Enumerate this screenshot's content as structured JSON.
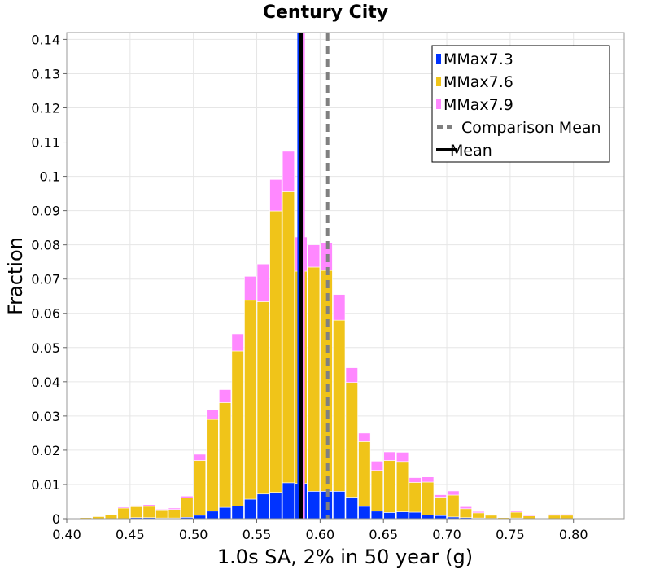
{
  "chart_data": {
    "type": "bar",
    "title": "Century City",
    "xlabel": "1.0s SA, 2% in 50 year (g)",
    "ylabel": "Fraction",
    "xlim": [
      0.4,
      0.84
    ],
    "ylim": [
      0,
      0.142
    ],
    "x_ticks": [
      "0.40",
      "0.45",
      "0.50",
      "0.55",
      "0.60",
      "0.65",
      "0.70",
      "0.75",
      "0.80"
    ],
    "y_ticks": [
      "0",
      "0.01",
      "0.02",
      "0.03",
      "0.04",
      "0.05",
      "0.06",
      "0.07",
      "0.08",
      "0.09",
      "0.1",
      "0.11",
      "0.12",
      "0.13",
      "0.14"
    ],
    "grid": true,
    "stacked": true,
    "bin_width": 0.01,
    "legend_position": "top-right",
    "bin_centers": [
      0.405,
      0.415,
      0.425,
      0.435,
      0.445,
      0.455,
      0.465,
      0.475,
      0.485,
      0.495,
      0.505,
      0.515,
      0.525,
      0.535,
      0.545,
      0.555,
      0.565,
      0.575,
      0.585,
      0.595,
      0.605,
      0.615,
      0.625,
      0.635,
      0.645,
      0.655,
      0.665,
      0.675,
      0.685,
      0.695,
      0.705,
      0.715,
      0.725,
      0.735,
      0.745,
      0.755,
      0.765,
      0.775,
      0.785,
      0.795,
      0.805,
      0.815,
      0.825,
      0.835
    ],
    "series": [
      {
        "name": "MMax7.3",
        "color": "#0033ff",
        "values": [
          0,
          0,
          0,
          0,
          0,
          0.0003,
          0.0003,
          0.0002,
          0.0002,
          0.0004,
          0.001,
          0.0022,
          0.0033,
          0.0037,
          0.0057,
          0.0072,
          0.0077,
          0.0105,
          0.0103,
          0.008,
          0.008,
          0.008,
          0.0063,
          0.0036,
          0.0022,
          0.0018,
          0.002,
          0.0019,
          0.0011,
          0.0009,
          0.0005,
          0.0003,
          0.0002,
          0.0001,
          0,
          0.0002,
          0,
          0,
          0,
          0,
          0,
          0,
          0,
          0
        ]
      },
      {
        "name": "MMax7.6",
        "color": "#f0c419",
        "values": [
          0,
          0.0003,
          0.0006,
          0.0012,
          0.0031,
          0.0032,
          0.0033,
          0.0024,
          0.0025,
          0.0057,
          0.016,
          0.0268,
          0.0306,
          0.0453,
          0.0581,
          0.0562,
          0.0822,
          0.085,
          0.062,
          0.0655,
          0.0645,
          0.05,
          0.0335,
          0.0189,
          0.0119,
          0.0152,
          0.0147,
          0.0087,
          0.0096,
          0.0054,
          0.0064,
          0.0026,
          0.0015,
          0.0009,
          0.0003,
          0.0017,
          0.0008,
          0,
          0.001,
          0.001,
          0,
          0,
          0.0002,
          0.0002
        ]
      },
      {
        "name": "MMax7.9",
        "color": "#ff88ff",
        "values": [
          0,
          0,
          0,
          0,
          0.0003,
          0.0004,
          0.0005,
          0.0002,
          0.0004,
          0.0005,
          0.0018,
          0.0028,
          0.0038,
          0.005,
          0.007,
          0.011,
          0.0092,
          0.0118,
          0.01,
          0.0065,
          0.0082,
          0.0075,
          0.0043,
          0.0025,
          0.0027,
          0.0025,
          0.0027,
          0.0014,
          0.0015,
          0.0007,
          0.0012,
          0.0006,
          0.0004,
          0.0002,
          0,
          0.0005,
          0.0003,
          0,
          0.0003,
          0.0003,
          0,
          0,
          0,
          0
        ]
      }
    ],
    "vertical_lines": [
      {
        "name": "Mean",
        "x": 0.585,
        "color": "#000000",
        "style": "solid"
      },
      {
        "name": "Comparison Mean",
        "x": 0.606,
        "color": "#808080",
        "style": "dashed"
      }
    ],
    "extra_lines": [
      {
        "x": 0.583,
        "color": "#0033ff"
      },
      {
        "x": 0.587,
        "color": "#ff88ff"
      }
    ],
    "legend": [
      {
        "label": "MMax7.3",
        "color": "#0033ff",
        "kind": "box"
      },
      {
        "label": "MMax7.6",
        "color": "#f0c419",
        "kind": "box"
      },
      {
        "label": "MMax7.9",
        "color": "#ff88ff",
        "kind": "box"
      },
      {
        "label": "Comparison Mean",
        "color": "#808080",
        "kind": "dash"
      },
      {
        "label": "Mean",
        "color": "#000000",
        "kind": "line"
      }
    ]
  }
}
